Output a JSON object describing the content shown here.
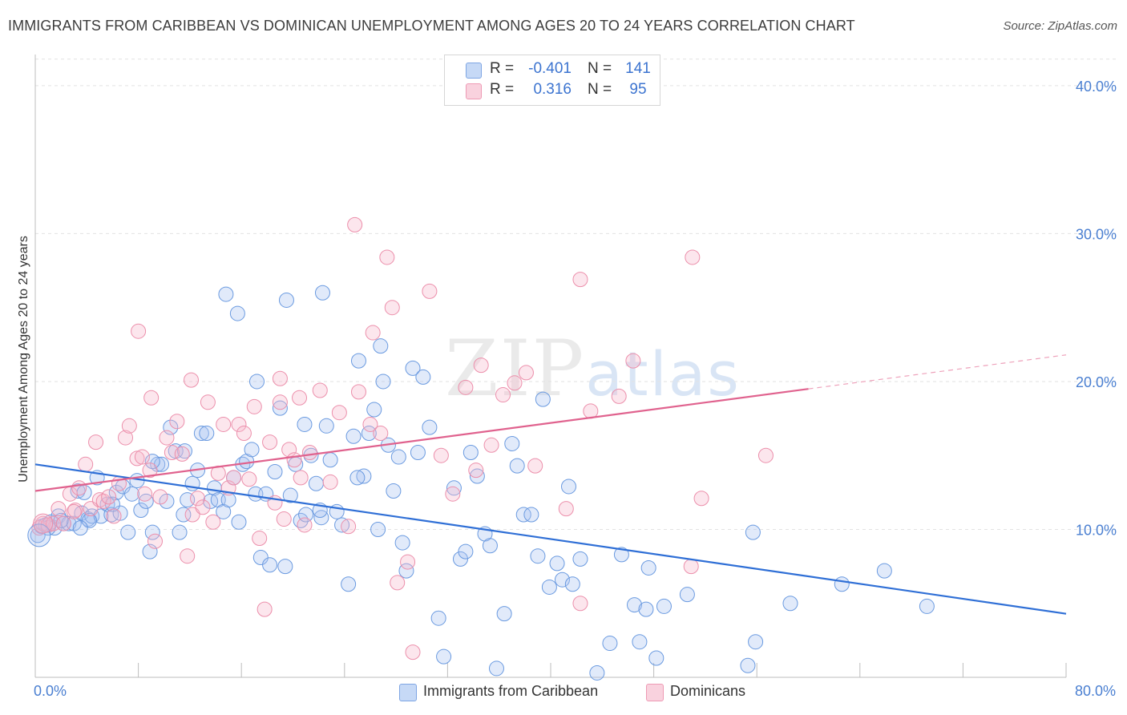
{
  "title": "IMMIGRANTS FROM CARIBBEAN VS DOMINICAN UNEMPLOYMENT AMONG AGES 20 TO 24 YEARS CORRELATION CHART",
  "source": "Source: ZipAtlas.com",
  "watermark_zip": "ZIP",
  "watermark_atlas": "atlas",
  "legend_top": {
    "rows": [
      {
        "r_label": "R =",
        "r_value": "-0.401",
        "n_label": "N =",
        "n_value": "141",
        "color": "#a8c4f0"
      },
      {
        "r_label": "R =",
        "r_value": "0.316",
        "n_label": "N =",
        "n_value": "95",
        "color": "#f5b8cb"
      }
    ]
  },
  "legend_bottom": {
    "items": [
      {
        "label": "Immigrants from Caribbean",
        "color": "#a8c4f0"
      },
      {
        "label": "Dominicans",
        "color": "#f5b8cb"
      }
    ]
  },
  "chart_data": {
    "type": "scatter",
    "title": "IMMIGRANTS FROM CARIBBEAN VS DOMINICAN UNEMPLOYMENT AMONG AGES 20 TO 24 YEARS CORRELATION CHART",
    "xlabel": "",
    "ylabel": "Unemployment Among Ages 20 to 24 years",
    "x_tick_labels": [
      "0.0%",
      "80.0%"
    ],
    "y_tick_labels": [
      "10.0%",
      "20.0%",
      "30.0%",
      "40.0%"
    ],
    "xlim": [
      0,
      80
    ],
    "ylim": [
      0,
      42
    ],
    "grid": true,
    "legend_placement": "bottom-center",
    "series": [
      {
        "name": "Immigrants from Caribbean",
        "color": "#6a9ae0",
        "trend": {
          "x": [
            0,
            80
          ],
          "y": [
            14.4,
            4.3
          ],
          "style": "solid"
        },
        "points": [
          [
            0.2,
            9.6
          ],
          [
            0.5,
            10.2
          ],
          [
            0.8,
            10.3
          ],
          [
            1.2,
            10.5
          ],
          [
            1.5,
            10.1
          ],
          [
            1.8,
            10.9
          ],
          [
            2.2,
            10.4
          ],
          [
            2.6,
            10.4
          ],
          [
            3.0,
            10.4
          ],
          [
            3.3,
            12.6
          ],
          [
            3.6,
            11.1
          ],
          [
            3.8,
            12.5
          ],
          [
            4.1,
            10.7
          ],
          [
            4.4,
            10.9
          ],
          [
            4.8,
            13.5
          ],
          [
            5.1,
            10.9
          ],
          [
            5.6,
            11.7
          ],
          [
            5.9,
            11.0
          ],
          [
            6.3,
            12.5
          ],
          [
            6.6,
            11.1
          ],
          [
            6.8,
            12.9
          ],
          [
            7.2,
            9.8
          ],
          [
            7.5,
            12.4
          ],
          [
            7.9,
            13.3
          ],
          [
            8.2,
            11.3
          ],
          [
            8.6,
            11.9
          ],
          [
            8.9,
            8.5
          ],
          [
            9.1,
            9.8
          ],
          [
            9.5,
            14.4
          ],
          [
            9.8,
            14.4
          ],
          [
            10.2,
            11.9
          ],
          [
            10.5,
            16.9
          ],
          [
            10.9,
            15.3
          ],
          [
            11.2,
            9.8
          ],
          [
            11.5,
            11.0
          ],
          [
            11.8,
            12.0
          ],
          [
            12.2,
            13.1
          ],
          [
            12.6,
            14.0
          ],
          [
            12.9,
            16.5
          ],
          [
            13.3,
            16.5
          ],
          [
            13.6,
            11.9
          ],
          [
            13.9,
            12.8
          ],
          [
            14.2,
            12.0
          ],
          [
            14.6,
            11.2
          ],
          [
            15.0,
            12.0
          ],
          [
            15.4,
            13.5
          ],
          [
            15.8,
            10.5
          ],
          [
            16.1,
            14.4
          ],
          [
            16.4,
            14.6
          ],
          [
            16.8,
            15.4
          ],
          [
            17.1,
            12.4
          ],
          [
            17.5,
            8.1
          ],
          [
            17.9,
            12.4
          ],
          [
            18.2,
            7.6
          ],
          [
            18.6,
            13.9
          ],
          [
            19.0,
            18.2
          ],
          [
            19.4,
            7.5
          ],
          [
            19.8,
            12.3
          ],
          [
            20.2,
            14.4
          ],
          [
            20.6,
            10.6
          ],
          [
            21.0,
            11.0
          ],
          [
            21.4,
            15.0
          ],
          [
            21.8,
            13.1
          ],
          [
            22.2,
            10.8
          ],
          [
            22.6,
            17.0
          ],
          [
            22.9,
            14.7
          ],
          [
            23.4,
            11.2
          ],
          [
            23.8,
            10.3
          ],
          [
            24.3,
            6.3
          ],
          [
            24.7,
            16.3
          ],
          [
            25.1,
            21.4
          ],
          [
            25.5,
            13.6
          ],
          [
            25.9,
            16.5
          ],
          [
            26.3,
            18.1
          ],
          [
            26.6,
            10.0
          ],
          [
            27.0,
            20.0
          ],
          [
            27.4,
            15.7
          ],
          [
            27.8,
            12.6
          ],
          [
            28.2,
            14.9
          ],
          [
            28.5,
            9.1
          ],
          [
            28.8,
            7.2
          ],
          [
            29.3,
            20.9
          ],
          [
            29.7,
            15.2
          ],
          [
            30.1,
            20.3
          ],
          [
            30.6,
            16.9
          ],
          [
            31.3,
            4.0
          ],
          [
            31.7,
            1.4
          ],
          [
            32.5,
            12.8
          ],
          [
            33.0,
            8.0
          ],
          [
            33.8,
            15.2
          ],
          [
            34.3,
            13.6
          ],
          [
            34.9,
            9.7
          ],
          [
            35.3,
            8.9
          ],
          [
            35.8,
            0.6
          ],
          [
            36.4,
            4.3
          ],
          [
            37.0,
            15.8
          ],
          [
            37.4,
            14.3
          ],
          [
            37.9,
            11.0
          ],
          [
            38.5,
            11.0
          ],
          [
            39.0,
            8.2
          ],
          [
            39.4,
            18.8
          ],
          [
            39.9,
            6.1
          ],
          [
            40.5,
            7.7
          ],
          [
            40.9,
            6.6
          ],
          [
            41.4,
            12.9
          ],
          [
            41.7,
            6.3
          ],
          [
            42.3,
            8.0
          ],
          [
            43.6,
            0.3
          ],
          [
            44.6,
            2.3
          ],
          [
            45.5,
            8.3
          ],
          [
            46.5,
            4.9
          ],
          [
            46.9,
            2.4
          ],
          [
            47.4,
            4.6
          ],
          [
            47.6,
            7.4
          ],
          [
            48.2,
            1.3
          ],
          [
            48.8,
            4.8
          ],
          [
            50.6,
            5.6
          ],
          [
            55.3,
            0.8
          ],
          [
            55.7,
            9.8
          ],
          [
            55.9,
            2.4
          ],
          [
            58.6,
            5.0
          ],
          [
            62.6,
            6.3
          ],
          [
            65.9,
            7.2
          ],
          [
            69.2,
            4.8
          ],
          [
            22.1,
            11.3
          ],
          [
            25.0,
            13.5
          ],
          [
            9.1,
            14.6
          ],
          [
            6.0,
            11.7
          ],
          [
            4.2,
            10.6
          ],
          [
            3.5,
            10.1
          ],
          [
            2.0,
            10.6
          ],
          [
            1.0,
            10.1
          ],
          [
            14.8,
            25.9
          ],
          [
            19.5,
            25.5
          ],
          [
            15.7,
            24.6
          ],
          [
            22.3,
            26.0
          ],
          [
            26.8,
            22.4
          ],
          [
            11.6,
            15.3
          ],
          [
            17.2,
            20.0
          ],
          [
            20.9,
            17.1
          ],
          [
            33.4,
            8.5
          ]
        ]
      },
      {
        "name": "Dominicans",
        "color": "#ec8fab",
        "trend": {
          "x": [
            0,
            60
          ],
          "y": [
            12.6,
            19.5
          ],
          "style": "solid",
          "extension": {
            "x": [
              60,
              80
            ],
            "y": [
              19.5,
              21.8
            ],
            "style": "dashed"
          }
        },
        "points": [
          [
            0.3,
            10.1
          ],
          [
            0.6,
            10.4
          ],
          [
            1.0,
            10.3
          ],
          [
            1.4,
            10.4
          ],
          [
            1.8,
            11.4
          ],
          [
            2.2,
            10.4
          ],
          [
            2.7,
            12.4
          ],
          [
            3.1,
            11.3
          ],
          [
            3.4,
            12.8
          ],
          [
            3.9,
            14.4
          ],
          [
            4.3,
            11.4
          ],
          [
            4.7,
            15.9
          ],
          [
            5.0,
            12.0
          ],
          [
            5.3,
            11.9
          ],
          [
            5.7,
            12.2
          ],
          [
            6.1,
            10.9
          ],
          [
            6.5,
            13.1
          ],
          [
            7.0,
            16.2
          ],
          [
            7.3,
            17.0
          ],
          [
            7.9,
            14.8
          ],
          [
            8.3,
            14.9
          ],
          [
            8.5,
            12.4
          ],
          [
            8.9,
            14.0
          ],
          [
            9.3,
            9.2
          ],
          [
            9.7,
            12.2
          ],
          [
            10.2,
            16.2
          ],
          [
            10.6,
            15.2
          ],
          [
            11.0,
            17.3
          ],
          [
            11.4,
            15.1
          ],
          [
            11.8,
            8.2
          ],
          [
            12.2,
            11.0
          ],
          [
            12.6,
            12.1
          ],
          [
            13.0,
            11.5
          ],
          [
            13.4,
            18.6
          ],
          [
            13.8,
            10.5
          ],
          [
            14.2,
            13.8
          ],
          [
            14.6,
            17.1
          ],
          [
            15.0,
            12.8
          ],
          [
            15.4,
            13.5
          ],
          [
            15.8,
            17.1
          ],
          [
            16.2,
            16.5
          ],
          [
            16.6,
            13.4
          ],
          [
            17.0,
            18.3
          ],
          [
            17.4,
            9.4
          ],
          [
            17.8,
            4.6
          ],
          [
            18.2,
            15.9
          ],
          [
            18.6,
            11.8
          ],
          [
            19.0,
            18.6
          ],
          [
            19.3,
            10.7
          ],
          [
            19.7,
            15.4
          ],
          [
            20.1,
            14.7
          ],
          [
            20.5,
            18.9
          ],
          [
            20.9,
            10.3
          ],
          [
            21.3,
            15.2
          ],
          [
            22.1,
            19.4
          ],
          [
            22.9,
            13.2
          ],
          [
            23.6,
            17.9
          ],
          [
            24.3,
            10.2
          ],
          [
            25.1,
            19.3
          ],
          [
            26.0,
            17.1
          ],
          [
            26.8,
            16.5
          ],
          [
            27.7,
            25.0
          ],
          [
            28.1,
            6.4
          ],
          [
            28.9,
            7.8
          ],
          [
            29.3,
            1.7
          ],
          [
            30.6,
            26.1
          ],
          [
            31.5,
            15.0
          ],
          [
            32.4,
            12.4
          ],
          [
            33.4,
            19.6
          ],
          [
            34.2,
            14.0
          ],
          [
            35.4,
            15.7
          ],
          [
            36.3,
            19.1
          ],
          [
            37.2,
            19.9
          ],
          [
            38.1,
            20.6
          ],
          [
            38.8,
            14.3
          ],
          [
            41.2,
            11.4
          ],
          [
            42.3,
            5.0
          ],
          [
            43.1,
            18.0
          ],
          [
            45.3,
            19.0
          ],
          [
            46.4,
            21.4
          ],
          [
            51.7,
            12.1
          ],
          [
            56.7,
            15.0
          ],
          [
            50.9,
            7.5
          ],
          [
            42.3,
            26.9
          ],
          [
            51.0,
            28.4
          ],
          [
            24.8,
            30.6
          ],
          [
            27.3,
            28.4
          ],
          [
            8.0,
            23.4
          ],
          [
            26.2,
            23.3
          ],
          [
            34.6,
            21.1
          ],
          [
            19.0,
            20.2
          ],
          [
            12.1,
            20.1
          ],
          [
            9.0,
            18.9
          ],
          [
            3.0,
            11.2
          ],
          [
            20.6,
            13.5
          ]
        ]
      }
    ]
  }
}
